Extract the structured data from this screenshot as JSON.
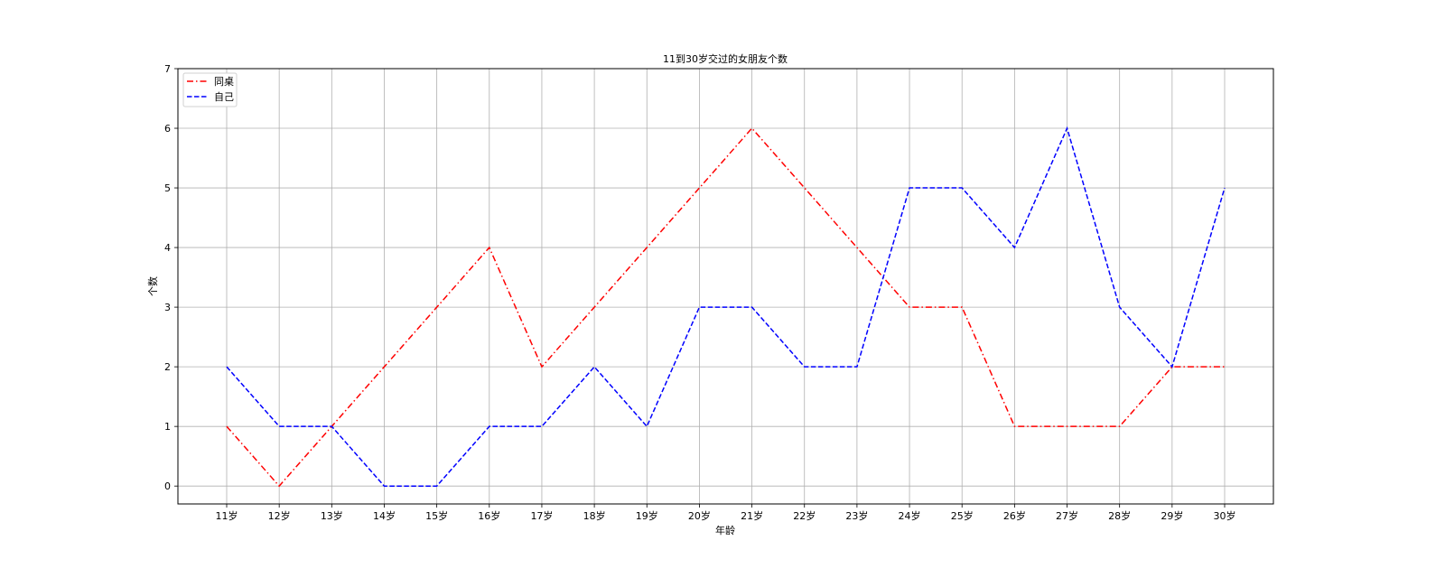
{
  "chart_data": {
    "type": "line",
    "title": "11到30岁交过的女朋友个数",
    "xlabel": "年龄",
    "ylabel": "个数",
    "categories": [
      "11岁",
      "12岁",
      "13岁",
      "14岁",
      "15岁",
      "16岁",
      "17岁",
      "18岁",
      "19岁",
      "20岁",
      "21岁",
      "22岁",
      "23岁",
      "24岁",
      "25岁",
      "26岁",
      "27岁",
      "28岁",
      "29岁",
      "30岁"
    ],
    "yticks": [
      "0",
      "1",
      "2",
      "3",
      "4",
      "5",
      "6",
      "7"
    ],
    "ylim": [
      -0.3,
      7
    ],
    "grid": true,
    "legend_position": "top-left",
    "series": [
      {
        "name": "同桌",
        "color": "#ff0000",
        "linestyle": "dashdot",
        "values": [
          1,
          0,
          1,
          2,
          3,
          4,
          2,
          3,
          4,
          5,
          6,
          5,
          4,
          3,
          3,
          1,
          1,
          1,
          2,
          2
        ]
      },
      {
        "name": "自己",
        "color": "#0000ff",
        "linestyle": "dashed",
        "values": [
          2,
          1,
          1,
          0,
          0,
          1,
          1,
          2,
          1,
          3,
          3,
          2,
          2,
          5,
          5,
          4,
          6,
          3,
          2,
          5
        ]
      }
    ]
  }
}
